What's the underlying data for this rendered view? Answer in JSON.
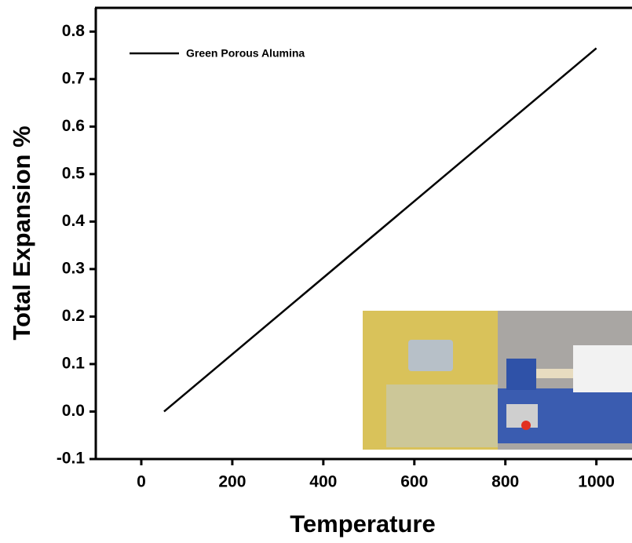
{
  "chart_data": {
    "type": "line",
    "x_label": "Temperature",
    "y_label": "Total Expansion %",
    "x": [
      50,
      1000
    ],
    "series": [
      {
        "name": "Green Porous Alumina",
        "color": "#000000",
        "values": [
          0.0,
          0.765
        ]
      }
    ],
    "xlim": [
      -100,
      1080
    ],
    "ylim": [
      -0.1,
      0.85
    ],
    "xticks": [
      0,
      200,
      400,
      600,
      800,
      1000
    ],
    "yticks": [
      {
        "value": -0.1,
        "label": "-0.1"
      },
      {
        "value": 0,
        "label": "0.0"
      },
      0.1,
      0.2,
      0.3,
      0.4,
      0.5,
      0.6,
      0.7,
      0.8
    ],
    "grid": false,
    "legend": "upper left"
  }
}
